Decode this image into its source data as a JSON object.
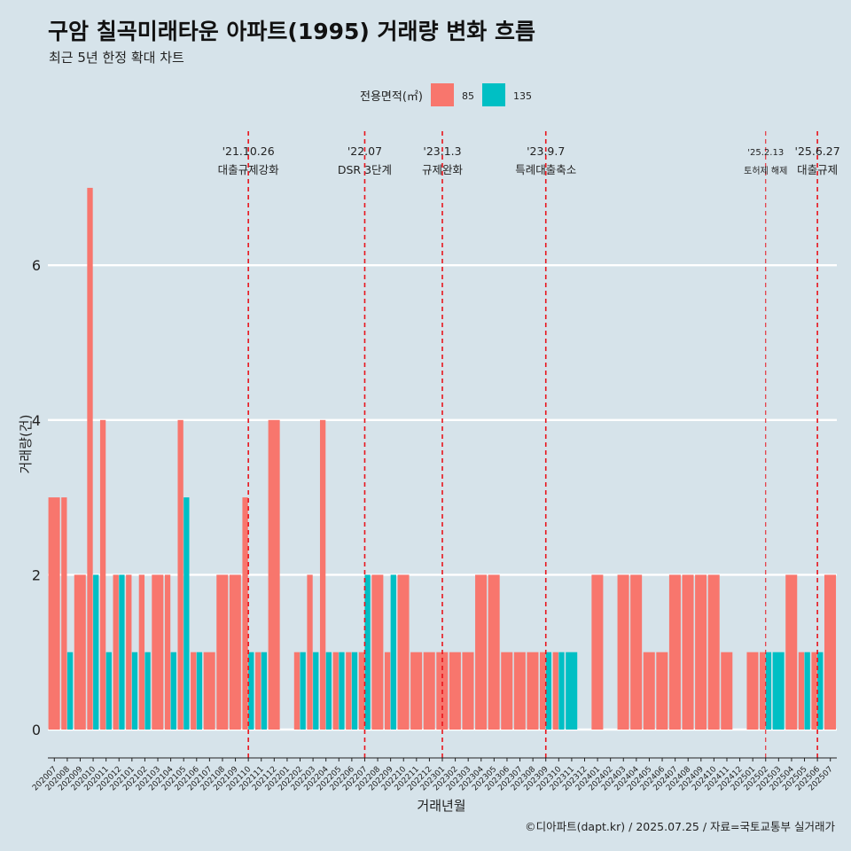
{
  "title": "구암 칠곡미래타운 아파트(1995) 거래량 변화 흐름",
  "subtitle": "최근 5년 한정 확대 차트",
  "caption": "©디아파트(dapt.kr) / 2025.07.25 / 자료=국토교통부 실거래가",
  "colors": {
    "background": "#d6e3ea",
    "gridline": "#ffffff",
    "event_line": "#e8141c",
    "s85": "#f8766d",
    "s135": "#00bfc4"
  },
  "chart_data": {
    "type": "bar",
    "xlabel": "거래년월",
    "ylabel": "거래량(건)",
    "ylim": [
      0,
      7
    ],
    "yticks": [
      0,
      2,
      4,
      6
    ],
    "grid": true,
    "legend": {
      "title": "전용면적(㎡)",
      "position": "top"
    },
    "categories": [
      "202007",
      "202008",
      "202009",
      "202010",
      "202011",
      "202012",
      "202101",
      "202102",
      "202103",
      "202104",
      "202105",
      "202106",
      "202107",
      "202108",
      "202109",
      "202110",
      "202111",
      "202112",
      "202201",
      "202202",
      "202203",
      "202204",
      "202205",
      "202206",
      "202207",
      "202208",
      "202209",
      "202210",
      "202211",
      "202212",
      "202301",
      "202302",
      "202303",
      "202304",
      "202305",
      "202306",
      "202307",
      "202308",
      "202309",
      "202310",
      "202311",
      "202312",
      "202401",
      "202402",
      "202403",
      "202404",
      "202405",
      "202406",
      "202407",
      "202408",
      "202409",
      "202410",
      "202411",
      "202412",
      "202501",
      "202502",
      "202503",
      "202504",
      "202505",
      "202506",
      "202507"
    ],
    "series": [
      {
        "name": "85",
        "values": [
          3,
          3,
          2,
          7,
          4,
          2,
          2,
          2,
          2,
          2,
          4,
          1,
          1,
          2,
          2,
          3,
          1,
          4,
          0,
          1,
          2,
          4,
          1,
          1,
          1,
          2,
          1,
          2,
          1,
          1,
          1,
          1,
          1,
          2,
          2,
          1,
          1,
          1,
          1,
          1,
          0,
          0,
          2,
          0,
          2,
          2,
          1,
          1,
          2,
          2,
          2,
          2,
          1,
          0,
          1,
          1,
          0,
          2,
          1,
          1,
          2
        ]
      },
      {
        "name": "135",
        "values": [
          0,
          1,
          0,
          2,
          1,
          2,
          1,
          1,
          0,
          1,
          3,
          1,
          0,
          0,
          0,
          1,
          1,
          0,
          0,
          1,
          1,
          1,
          1,
          1,
          2,
          0,
          2,
          0,
          0,
          0,
          0,
          0,
          0,
          0,
          0,
          0,
          0,
          0,
          1,
          1,
          1,
          0,
          0,
          0,
          0,
          0,
          0,
          0,
          0,
          0,
          0,
          0,
          0,
          0,
          0,
          1,
          1,
          0,
          1,
          1,
          0
        ]
      }
    ],
    "events": [
      {
        "x": "202110",
        "date": "'21.10.26",
        "label": "대출규제강화"
      },
      {
        "x": "202207",
        "date": "'22.07",
        "label": "DSR 3단계"
      },
      {
        "x": "202301",
        "date": "'23.1.3",
        "label": "규제완화"
      },
      {
        "x": "202309",
        "date": "'23.9.7",
        "label": "특례대출축소"
      },
      {
        "x": "202502",
        "date": "'25.2.13",
        "label": "토허제 해제"
      },
      {
        "x": "202506",
        "date": "'25.6.27",
        "label": "대출규제"
      }
    ]
  }
}
